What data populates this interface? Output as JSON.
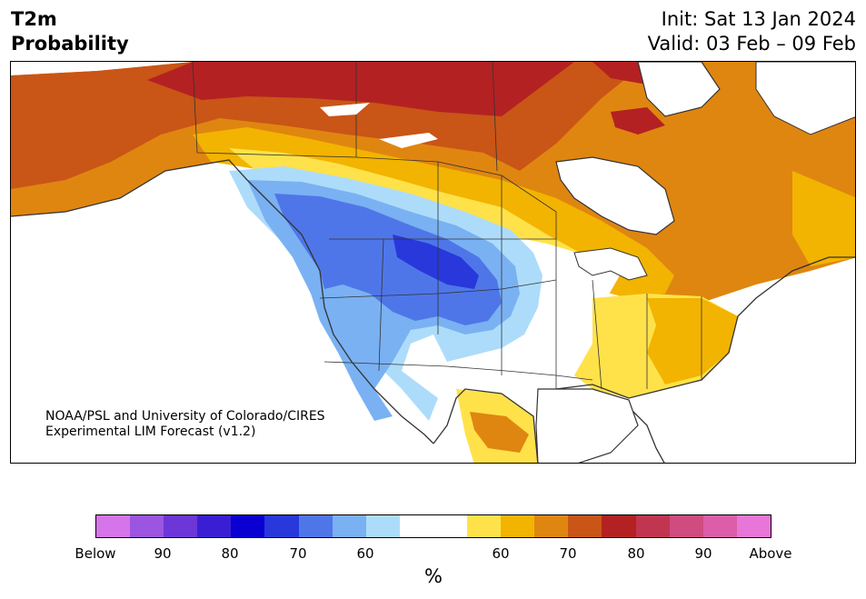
{
  "title": {
    "left_line1": "T2m",
    "left_line2": "Probability",
    "right_line1": "Init: Sat 13 Jan 2024",
    "right_line2": "Valid: 03 Feb – 09 Feb"
  },
  "credit": {
    "line1": "NOAA/PSL and University of Colorado/CIRES",
    "line2": "Experimental LIM Forecast (v1.2)"
  },
  "colorbar": {
    "colors": [
      "#d674ea",
      "#9b55e0",
      "#6c36d8",
      "#3a1ed4",
      "#0a00d2",
      "#2838db",
      "#4f76e8",
      "#7ab1f2",
      "#addcfb",
      "#ffffff",
      "#ffffff",
      "#ffe24a",
      "#f2b400",
      "#df8610",
      "#c95516",
      "#b42122",
      "#c23550",
      "#d04b80",
      "#dc5ea8",
      "#e776d8"
    ],
    "labels": [
      "Below",
      "90",
      "80",
      "70",
      "60",
      "60",
      "70",
      "80",
      "90",
      "Above"
    ],
    "unit": "%"
  },
  "map_colors": {
    "land": "#ffffff",
    "water": "#ffffff",
    "border": "#333333"
  }
}
